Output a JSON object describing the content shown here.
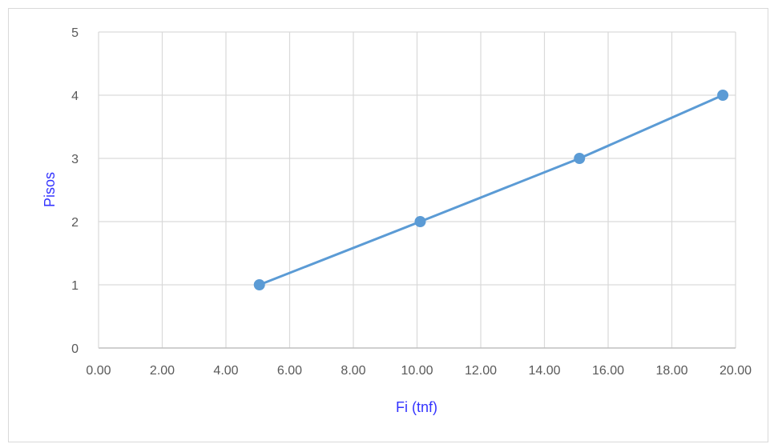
{
  "chart_data": {
    "type": "line",
    "title": "",
    "xlabel": "Fi (tnf)",
    "ylabel": "Pisos",
    "xlim": [
      0,
      20
    ],
    "ylim": [
      0,
      5
    ],
    "x_ticks": [
      "0.00",
      "2.00",
      "4.00",
      "6.00",
      "8.00",
      "10.00",
      "12.00",
      "14.00",
      "16.00",
      "18.00",
      "20.00"
    ],
    "y_ticks": [
      "0",
      "1",
      "2",
      "3",
      "4",
      "5"
    ],
    "grid": true,
    "legend": "none",
    "series": [
      {
        "x": [
          5.05,
          10.1,
          15.1,
          19.6
        ],
        "y": [
          1,
          2,
          3,
          4
        ]
      }
    ],
    "colors": {
      "series": "#5b9bd5",
      "axis_title": "#3333ff",
      "grid": "#d9d9d9",
      "tick_text": "#595959"
    }
  }
}
